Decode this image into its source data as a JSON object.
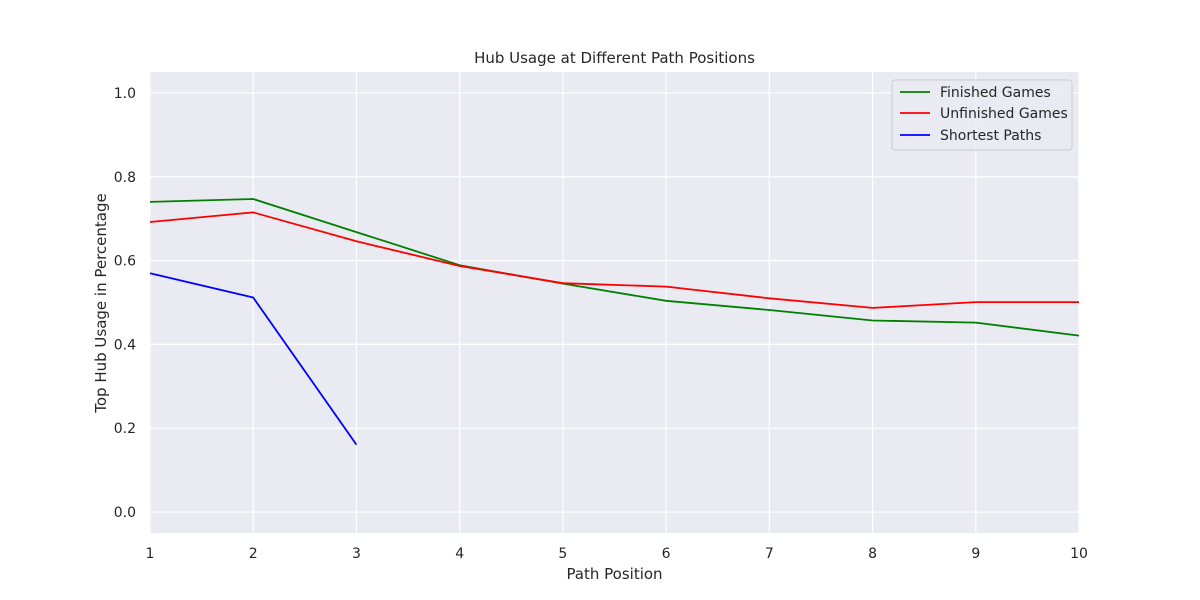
{
  "chart_data": {
    "type": "line",
    "title": "Hub Usage at Different Path Positions",
    "xlabel": "Path Position",
    "ylabel": "Top Hub Usage in Percentage",
    "xlim": [
      1,
      10
    ],
    "ylim": [
      -0.05,
      1.05
    ],
    "x_ticks": [
      1,
      2,
      3,
      4,
      5,
      6,
      7,
      8,
      9,
      10
    ],
    "y_ticks": [
      "0.0",
      "0.2",
      "0.4",
      "0.6",
      "0.8",
      "1.0"
    ],
    "grid": true,
    "legend_position": "top-right",
    "series": [
      {
        "name": "Finished Games",
        "color": "#008000",
        "x": [
          1,
          2,
          3,
          4,
          5,
          6,
          7,
          8,
          9,
          10
        ],
        "values": [
          0.74,
          0.747,
          0.668,
          0.589,
          0.545,
          0.504,
          0.482,
          0.457,
          0.452,
          0.421
        ]
      },
      {
        "name": "Unfinished Games",
        "color": "#ff0000",
        "x": [
          1,
          2,
          3,
          4,
          5,
          6,
          7,
          8,
          9,
          10
        ],
        "values": [
          0.692,
          0.715,
          0.646,
          0.587,
          0.546,
          0.538,
          0.51,
          0.487,
          0.501,
          0.501
        ]
      },
      {
        "name": "Shortest Paths",
        "color": "#0000ff",
        "x": [
          1,
          2,
          3
        ],
        "values": [
          0.57,
          0.512,
          0.161
        ]
      }
    ]
  }
}
